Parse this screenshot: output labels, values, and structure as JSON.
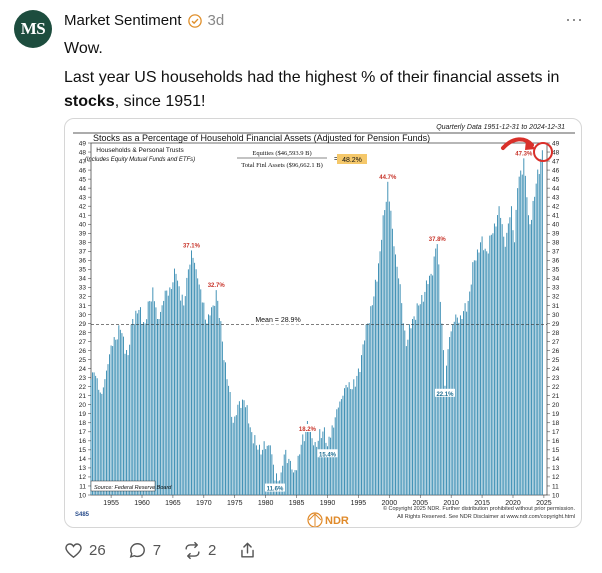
{
  "post": {
    "avatar_text": "MS",
    "author": "Market Sentiment",
    "time": "3d",
    "line1": "Wow.",
    "line2_pre": "Last year US households had the highest % of their financial assets in ",
    "line2_bold": "stocks",
    "line2_post": ", since 1951!"
  },
  "actions": {
    "likes": "26",
    "comments": "7",
    "reposts": "2"
  },
  "colors": {
    "bar": "#3d8fb4",
    "avatar": "#1d4d3e",
    "annot": "#c8352b",
    "arrow": "#d9302a",
    "highlight": "#f5c86a"
  },
  "chart_data": {
    "type": "bar",
    "quarterly_note": "Quarterly Data 1951-12-31 to 2024-12-31",
    "title": "Stocks as a Percentage of Household Financial Assets (Adjusted for Pension Funds)",
    "subtitle1": "Households & Personal Trusts",
    "subtitle2": "(Includes Equity Mutual Funds and ETFs)",
    "numerator": "Equities ($46,593.9 B)",
    "denominator": "Total Finl Assets ($96,662.1 B)",
    "ratio": "48.2%",
    "mean_label": "Mean = 28.9%",
    "mean": 28.9,
    "source": "Source: Federal Reserve Board",
    "chart_id": "S485",
    "copyright1": "© Copyright 2025 NDR. Further distribution prohibited without prior permission.",
    "copyright2": "All Rights Reserved. See NDR Disclaimer at www.ndr.com/copyright.html",
    "logo": "NDR",
    "ylim": [
      10,
      49
    ],
    "yticks": [
      10,
      11,
      12,
      13,
      14,
      15,
      16,
      17,
      18,
      19,
      20,
      21,
      22,
      23,
      24,
      25,
      26,
      27,
      28,
      29,
      30,
      31,
      32,
      33,
      34,
      35,
      36,
      37,
      38,
      39,
      40,
      41,
      42,
      43,
      44,
      45,
      46,
      47,
      48,
      49
    ],
    "xlim": [
      1951.75,
      2025.5
    ],
    "xticks": [
      1955,
      1960,
      1965,
      1970,
      1975,
      1980,
      1985,
      1990,
      1995,
      2000,
      2005,
      2010,
      2015,
      2020,
      2025
    ],
    "annotations": [
      {
        "x": 1968.0,
        "y": 37.1,
        "label": "37.1%"
      },
      {
        "x": 1972.0,
        "y": 32.7,
        "label": "32.7%"
      },
      {
        "x": 1981.5,
        "y": 11.6,
        "label": "11.6%"
      },
      {
        "x": 1986.75,
        "y": 18.2,
        "label": "18.2%"
      },
      {
        "x": 1990.0,
        "y": 15.4,
        "label": "15.4%"
      },
      {
        "x": 1999.75,
        "y": 44.7,
        "label": "44.7%"
      },
      {
        "x": 2007.75,
        "y": 37.8,
        "label": "37.8%"
      },
      {
        "x": 2009.0,
        "y": 22.1,
        "label": "22.1%"
      },
      {
        "x": 2021.75,
        "y": 47.3,
        "label": "47.3%"
      }
    ],
    "anchors": [
      [
        1951.75,
        22.8
      ],
      [
        1952.5,
        23.2
      ],
      [
        1953.5,
        21.2
      ],
      [
        1954.5,
        24.5
      ],
      [
        1955.5,
        27.5
      ],
      [
        1956.5,
        28.3
      ],
      [
        1957.75,
        25.5
      ],
      [
        1958.5,
        29.5
      ],
      [
        1959.5,
        30.5
      ],
      [
        1960.5,
        29.0
      ],
      [
        1961.75,
        33.0
      ],
      [
        1962.5,
        29.5
      ],
      [
        1963.5,
        31.5
      ],
      [
        1964.5,
        33.0
      ],
      [
        1965.5,
        34.5
      ],
      [
        1966.75,
        31.0
      ],
      [
        1967.5,
        35.0
      ],
      [
        1968.0,
        37.1
      ],
      [
        1969.0,
        34.0
      ],
      [
        1970.5,
        29.0
      ],
      [
        1971.5,
        31.0
      ],
      [
        1972.0,
        32.7
      ],
      [
        1973.0,
        27.0
      ],
      [
        1974.75,
        18.0
      ],
      [
        1975.5,
        20.0
      ],
      [
        1976.5,
        20.5
      ],
      [
        1977.5,
        17.5
      ],
      [
        1978.5,
        15.5
      ],
      [
        1979.5,
        15.0
      ],
      [
        1980.75,
        15.5
      ],
      [
        1981.5,
        11.6
      ],
      [
        1982.5,
        12.5
      ],
      [
        1983.25,
        15.0
      ],
      [
        1984.5,
        12.5
      ],
      [
        1985.5,
        14.5
      ],
      [
        1986.75,
        18.2
      ],
      [
        1987.75,
        15.5
      ],
      [
        1988.5,
        16.0
      ],
      [
        1989.5,
        17.5
      ],
      [
        1990.0,
        15.4
      ],
      [
        1991.5,
        19.5
      ],
      [
        1992.5,
        21.0
      ],
      [
        1993.5,
        22.5
      ],
      [
        1994.5,
        22.0
      ],
      [
        1995.5,
        25.5
      ],
      [
        1996.5,
        29.0
      ],
      [
        1997.5,
        32.0
      ],
      [
        1998.5,
        37.0
      ],
      [
        1999.75,
        44.7
      ],
      [
        2000.5,
        39.5
      ],
      [
        2001.5,
        34.0
      ],
      [
        2002.75,
        26.5
      ],
      [
        2003.75,
        29.5
      ],
      [
        2004.75,
        31.0
      ],
      [
        2005.75,
        32.5
      ],
      [
        2006.75,
        34.5
      ],
      [
        2007.75,
        37.8
      ],
      [
        2008.5,
        29.0
      ],
      [
        2009.0,
        22.1
      ],
      [
        2009.75,
        27.5
      ],
      [
        2010.75,
        30.0
      ],
      [
        2011.75,
        29.5
      ],
      [
        2012.75,
        31.5
      ],
      [
        2013.75,
        36.0
      ],
      [
        2014.75,
        38.0
      ],
      [
        2015.75,
        37.0
      ],
      [
        2016.75,
        39.0
      ],
      [
        2017.75,
        42.0
      ],
      [
        2018.75,
        37.5
      ],
      [
        2019.75,
        42.0
      ],
      [
        2020.25,
        38.0
      ],
      [
        2020.75,
        44.0
      ],
      [
        2021.75,
        47.3
      ],
      [
        2022.5,
        41.0
      ],
      [
        2022.75,
        40.0
      ],
      [
        2023.75,
        44.5
      ],
      [
        2024.75,
        48.2
      ]
    ]
  }
}
